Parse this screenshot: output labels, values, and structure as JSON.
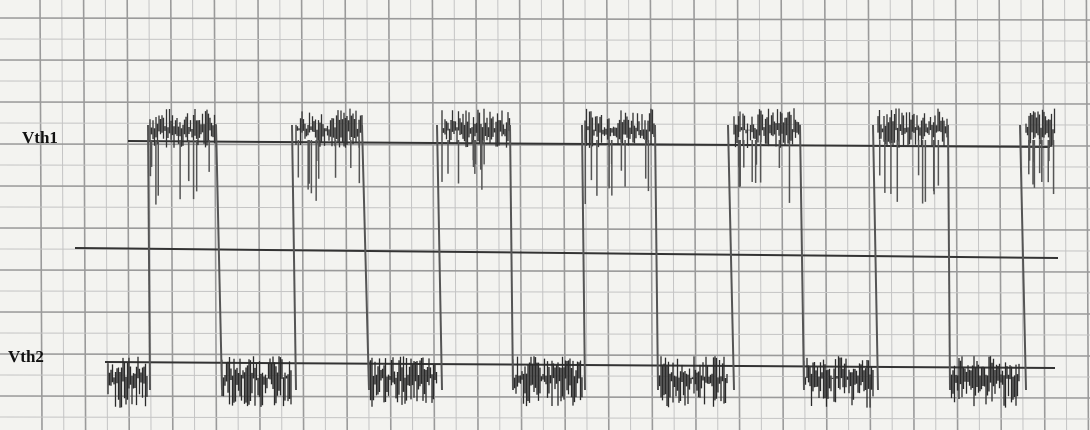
{
  "labels": {
    "upper_threshold": "Vth1",
    "lower_threshold": "Vth2"
  }
}
